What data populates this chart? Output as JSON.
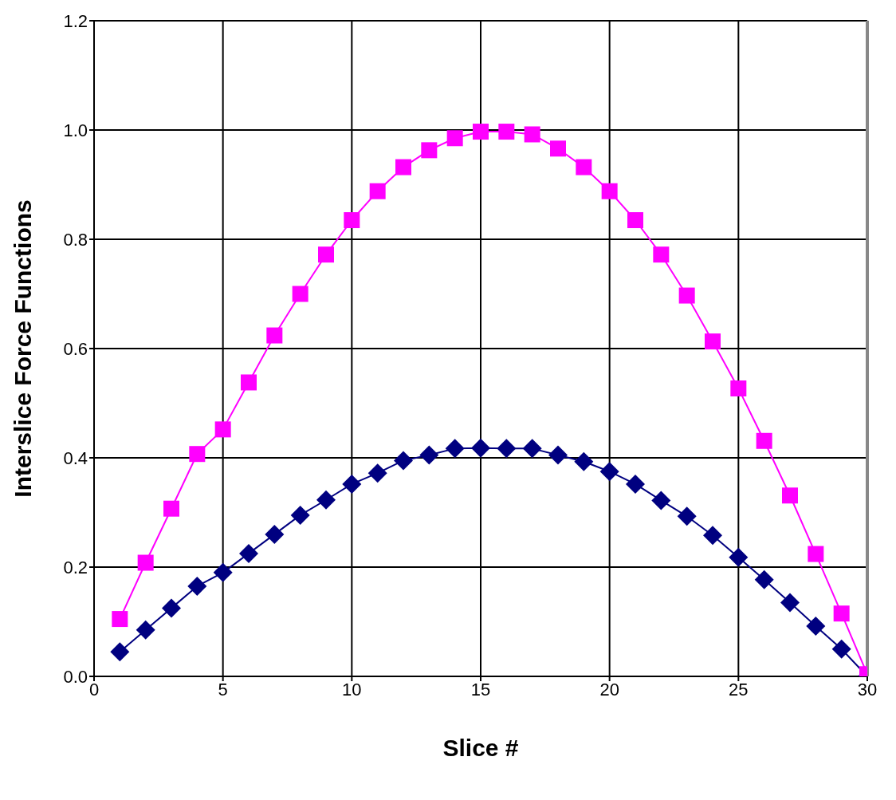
{
  "chart_data": {
    "type": "line",
    "xlabel": "Slice #",
    "ylabel": "Interslice Force Functions",
    "x": [
      1,
      2,
      3,
      4,
      5,
      6,
      7,
      8,
      9,
      10,
      11,
      12,
      13,
      14,
      15,
      16,
      17,
      18,
      19,
      20,
      21,
      22,
      23,
      24,
      25,
      26,
      27,
      28,
      29,
      30
    ],
    "series": [
      {
        "color": "#ff00ff",
        "marker": "square",
        "values": [
          0.105,
          0.208,
          0.307,
          0.407,
          0.452,
          0.538,
          0.624,
          0.7,
          0.772,
          0.835,
          0.888,
          0.932,
          0.963,
          0.985,
          0.997,
          0.997,
          0.992,
          0.966,
          0.932,
          0.888,
          0.835,
          0.772,
          0.697,
          0.613,
          0.527,
          0.431,
          0.331,
          0.224,
          0.115,
          0.004
        ]
      },
      {
        "color": "#000080",
        "marker": "diamond",
        "values": [
          0.045,
          0.085,
          0.125,
          0.165,
          0.19,
          0.225,
          0.26,
          0.295,
          0.323,
          0.352,
          0.372,
          0.395,
          0.405,
          0.417,
          0.418,
          0.417,
          0.417,
          0.405,
          0.393,
          0.375,
          0.352,
          0.322,
          0.293,
          0.258,
          0.218,
          0.177,
          0.135,
          0.092,
          0.05,
          0.0
        ]
      }
    ],
    "xlim": [
      0,
      30
    ],
    "xticks": [
      0,
      5,
      10,
      15,
      20,
      25,
      30
    ],
    "ylim": [
      0,
      1.2
    ],
    "yticks": [
      {
        "value": 0,
        "label": "0.0"
      },
      {
        "value": 0.2,
        "label": "0.2"
      },
      {
        "value": 0.4,
        "label": "0.4"
      },
      {
        "value": 0.6,
        "label": "0.6"
      },
      {
        "value": 0.8,
        "label": "0.8"
      },
      {
        "value": 1.0,
        "label": "1.0"
      },
      {
        "value": 1.2,
        "label": "1.2"
      }
    ],
    "grid": true,
    "line_style": "solid"
  }
}
